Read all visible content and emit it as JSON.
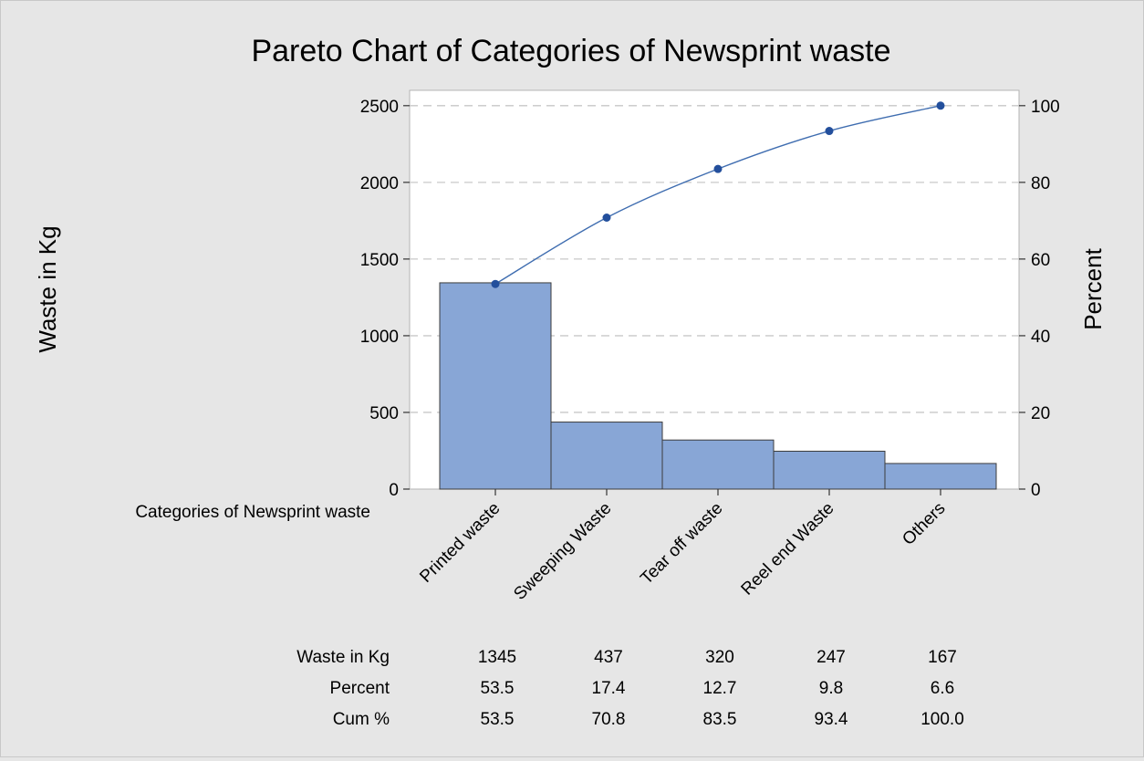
{
  "chart_data": {
    "type": "bar",
    "title": "Pareto Chart of Categories of Newsprint waste",
    "ylabel": "Waste in Kg",
    "y2label": "Percent",
    "xlabel": "Categories of Newsprint waste",
    "ylim": [
      0,
      2600
    ],
    "y2lim": [
      0,
      104
    ],
    "yticks": [
      0,
      500,
      1000,
      1500,
      2000,
      2500
    ],
    "y2ticks": [
      0,
      20,
      40,
      60,
      80,
      100
    ],
    "grid": true,
    "categories": [
      "Printed waste",
      "Sweeping Waste",
      "Tear off waste",
      "Reel end Waste",
      "Others"
    ],
    "series": [
      {
        "name": "Waste in Kg",
        "type": "bar",
        "axis": "left",
        "values": [
          1345,
          437,
          320,
          247,
          167
        ]
      },
      {
        "name": "Cum %",
        "type": "line",
        "axis": "right",
        "values": [
          53.5,
          70.8,
          83.5,
          93.4,
          100.0
        ]
      }
    ],
    "table": {
      "rows": [
        {
          "label": "Waste in Kg",
          "values": [
            "1345",
            "437",
            "320",
            "247",
            "167"
          ]
        },
        {
          "label": "Percent",
          "values": [
            "53.5",
            "17.4",
            "12.7",
            "9.8",
            "6.6"
          ]
        },
        {
          "label": "Cum %",
          "values": [
            "53.5",
            "70.8",
            "83.5",
            "93.4",
            "100.0"
          ]
        }
      ]
    },
    "colors": {
      "bar_fill": "#88a6d6",
      "bar_stroke": "#3c3c3c",
      "line": "#3f6db0",
      "marker": "#234f9c",
      "grid": "#c8c8c8",
      "plot_bg": "#ffffff",
      "page_bg": "#e6e6e6"
    }
  }
}
